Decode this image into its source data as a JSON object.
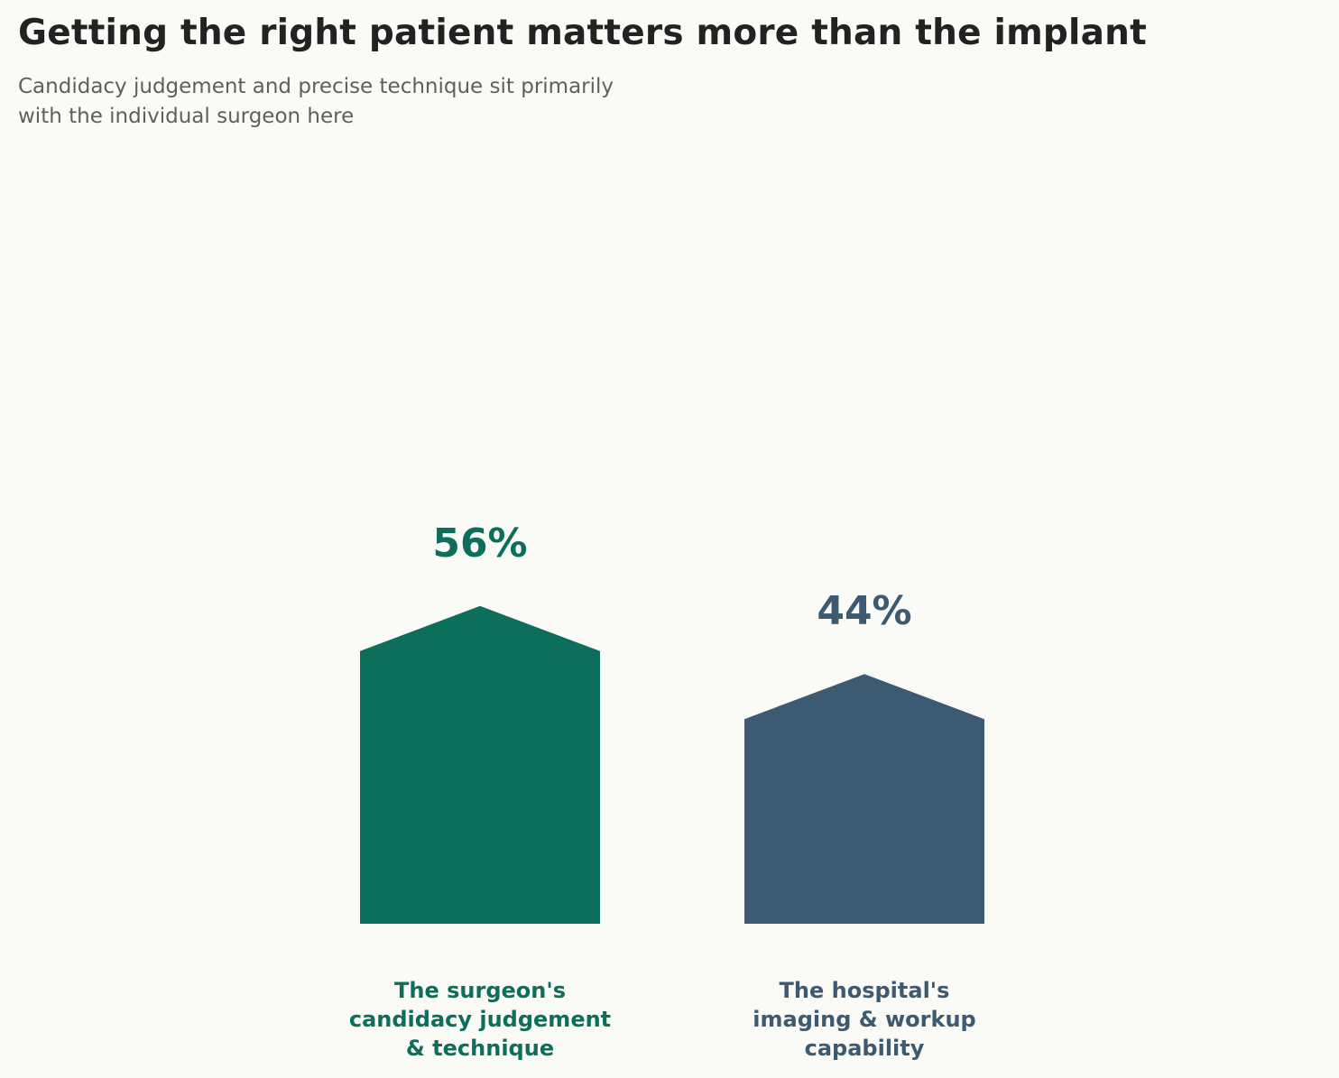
{
  "title": "Getting the right patient matters more than the implant",
  "subtitle_lines": [
    "Candidacy judgement and precise technique sit primarily",
    "with the individual surgeon here"
  ],
  "chart_data": {
    "type": "bar",
    "categories": [
      [
        "The surgeon's",
        "candidacy judgement",
        "& technique"
      ],
      [
        "The hospital's",
        "imaging & workup",
        "capability"
      ]
    ],
    "values": [
      56,
      44
    ],
    "value_labels": [
      "56%",
      "44%"
    ],
    "colors": [
      "#0e6e5c",
      "#3d5a73"
    ],
    "ylim": [
      0,
      100
    ],
    "grid": false,
    "legend": "none"
  }
}
